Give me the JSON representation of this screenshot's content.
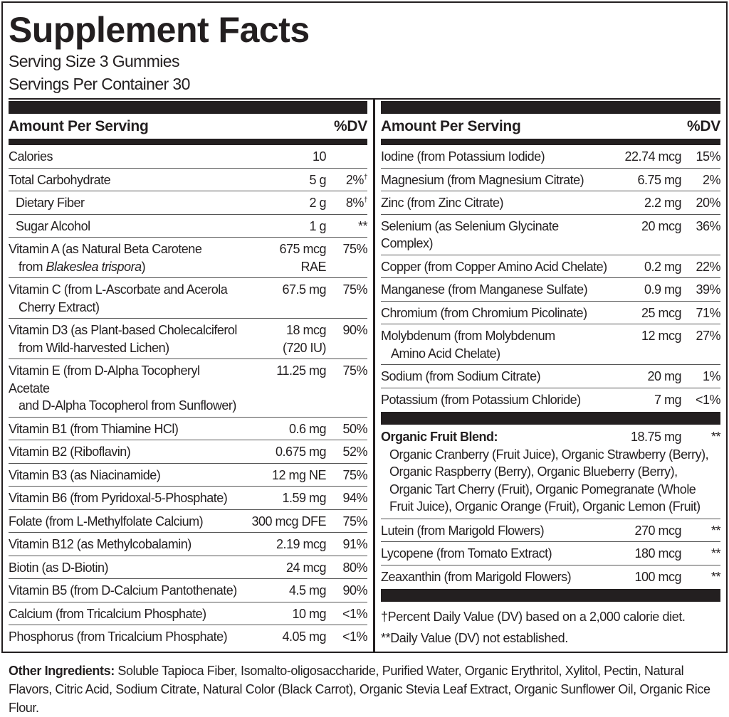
{
  "title": "Supplement Facts",
  "serving_size": "Serving Size 3 Gummies",
  "servings_per_container": "Servings Per Container 30",
  "header": {
    "amount": "Amount Per Serving",
    "dv": "%DV"
  },
  "left_rows": [
    {
      "name": [
        "Calories"
      ],
      "amount": [
        "10"
      ],
      "dv": ""
    },
    {
      "name": [
        "Total Carbohydrate"
      ],
      "amount": [
        "5 g"
      ],
      "dv": "2%",
      "dv_mark": "†"
    },
    {
      "name": [
        "Dietary Fiber"
      ],
      "amount": [
        "2 g"
      ],
      "dv": "8%",
      "dv_mark": "†",
      "indent": true
    },
    {
      "name": [
        "Sugar Alcohol"
      ],
      "amount": [
        "1 g"
      ],
      "dv": "**",
      "indent": true
    },
    {
      "name": [
        "Vitamin A (as Natural Beta Carotene"
      ],
      "name2": {
        "pre": "from ",
        "italic": "Blakeslea trispora",
        "post": ")"
      },
      "amount": [
        "675 mcg",
        "RAE"
      ],
      "dv": "75%"
    },
    {
      "name": [
        "Vitamin C (from L-Ascorbate and Acerola",
        "Cherry Extract)"
      ],
      "amount": [
        "67.5 mg"
      ],
      "dv": "75%"
    },
    {
      "name": [
        "Vitamin D3 (as Plant-based Cholecalciferol",
        "from Wild-harvested Lichen)"
      ],
      "amount": [
        "18 mcg",
        "(720 IU)"
      ],
      "dv": "90%"
    },
    {
      "name": [
        "Vitamin E (from D-Alpha Tocopheryl Acetate",
        "and D-Alpha Tocopherol from Sunflower)"
      ],
      "amount": [
        "11.25 mg"
      ],
      "dv": "75%"
    },
    {
      "name": [
        "Vitamin B1 (from Thiamine HCl)"
      ],
      "amount": [
        "0.6 mg"
      ],
      "dv": "50%"
    },
    {
      "name": [
        "Vitamin B2 (Riboflavin)"
      ],
      "amount": [
        "0.675 mg"
      ],
      "dv": "52%"
    },
    {
      "name": [
        "Vitamin B3 (as Niacinamide)"
      ],
      "amount": [
        "12 mg NE"
      ],
      "dv": "75%"
    },
    {
      "name": [
        "Vitamin B6 (from Pyridoxal-5-Phosphate)"
      ],
      "amount": [
        "1.59 mg"
      ],
      "dv": "94%"
    },
    {
      "name": [
        "Folate (from L-Methylfolate Calcium)"
      ],
      "amount": [
        "300 mcg DFE"
      ],
      "dv": "75%"
    },
    {
      "name": [
        "Vitamin B12 (as Methylcobalamin)"
      ],
      "amount": [
        "2.19 mcg"
      ],
      "dv": "91%"
    },
    {
      "name": [
        "Biotin (as D-Biotin)"
      ],
      "amount": [
        "24 mcg"
      ],
      "dv": "80%"
    },
    {
      "name": [
        "Vitamin B5 (from D-Calcium Pantothenate)"
      ],
      "amount": [
        "4.5 mg"
      ],
      "dv": "90%"
    },
    {
      "name": [
        "Calcium (from Tricalcium Phosphate)"
      ],
      "amount": [
        "10 mg"
      ],
      "dv": "<1%"
    },
    {
      "name": [
        "Phosphorus (from Tricalcium Phosphate)"
      ],
      "amount": [
        "4.05 mg"
      ],
      "dv": "<1%"
    }
  ],
  "right_rows": [
    {
      "name": [
        "Iodine (from Potassium Iodide)"
      ],
      "amount": [
        "22.74 mcg"
      ],
      "dv": "15%"
    },
    {
      "name": [
        "Magnesium (from Magnesium Citrate)"
      ],
      "amount": [
        "6.75 mg"
      ],
      "dv": "2%"
    },
    {
      "name": [
        "Zinc (from Zinc Citrate)"
      ],
      "amount": [
        "2.2 mg"
      ],
      "dv": "20%"
    },
    {
      "name": [
        "Selenium (as Selenium Glycinate Complex)"
      ],
      "amount": [
        "20 mcg"
      ],
      "dv": "36%"
    },
    {
      "name": [
        "Copper (from Copper Amino Acid Chelate)"
      ],
      "amount": [
        "0.2 mg"
      ],
      "dv": "22%"
    },
    {
      "name": [
        "Manganese (from Manganese Sulfate)"
      ],
      "amount": [
        "0.9 mg"
      ],
      "dv": "39%"
    },
    {
      "name": [
        "Chromium (from Chromium Picolinate)"
      ],
      "amount": [
        "25 mcg"
      ],
      "dv": "71%"
    },
    {
      "name": [
        "Molybdenum (from Molybdenum",
        "Amino Acid Chelate)"
      ],
      "amount": [
        "12 mcg"
      ],
      "dv": "27%"
    },
    {
      "name": [
        "Sodium (from Sodium Citrate)"
      ],
      "amount": [
        "20 mg"
      ],
      "dv": "1%"
    },
    {
      "name": [
        "Potassium (from Potassium Chloride)"
      ],
      "amount": [
        "7 mg"
      ],
      "dv": "<1%"
    }
  ],
  "blend": {
    "name": "Organic Fruit Blend:",
    "amount": "18.75 mg",
    "dv": "**",
    "description": "Organic Cranberry (Fruit Juice), Organic Strawberry (Berry), Organic Raspberry (Berry), Organic Blueberry (Berry), Organic Tart Cherry (Fruit), Organic Pomegranate (Whole Fruit Juice), Organic Orange (Fruit), Organic Lemon (Fruit)"
  },
  "right_rows2": [
    {
      "name": [
        "Lutein (from Marigold Flowers)"
      ],
      "amount": [
        "270 mcg"
      ],
      "dv": "**"
    },
    {
      "name": [
        "Lycopene (from Tomato Extract)"
      ],
      "amount": [
        "180 mcg"
      ],
      "dv": "**"
    },
    {
      "name": [
        "Zeaxanthin (from Marigold Flowers)"
      ],
      "amount": [
        "100 mcg"
      ],
      "dv": "**"
    }
  ],
  "footnotes": [
    "†Percent Daily Value (DV) based on a 2,000 calorie diet.",
    "**Daily Value (DV) not established."
  ],
  "other_ingredients": {
    "label": "Other Ingredients:",
    "text": " Soluble Tapioca Fiber, Isomalto-oligosaccharide, Purified Water, Organic Erythritol, Xylitol, Pectin, Natural Flavors, Citric Acid, Sodium Citrate, Natural Color (Black Carrot), Organic Stevia Leaf Extract, Organic Sunflower Oil, Organic Rice Flour."
  }
}
